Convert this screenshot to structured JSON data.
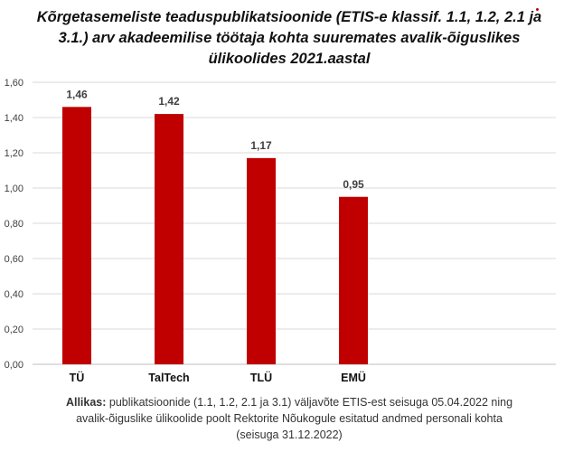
{
  "chart_data": {
    "type": "bar",
    "title": "Kõrgetasemeliste teaduspublikatsioonide (ETIS-e klassif. 1.1, 1.2, 2.1 ja 3.1.) arv akadeemilise töötaja kohta suuremates avalik-õiguslikes ülikoolides 2021.aastal",
    "categories": [
      "TÜ",
      "TalTech",
      "TLÜ",
      "EMÜ"
    ],
    "values": [
      1.46,
      1.42,
      1.17,
      0.95
    ],
    "data_labels": [
      "1,46",
      "1,42",
      "1,17",
      "0,95"
    ],
    "y_ticks": [
      "0,00",
      "0,20",
      "0,40",
      "0,60",
      "0,80",
      "1,00",
      "1,20",
      "1,40",
      "1,60"
    ],
    "ylim": [
      0,
      1.6
    ],
    "xlabel": "",
    "ylabel": "",
    "grid": true,
    "bar_color": "#c00000"
  },
  "source": {
    "label": "Allikas:",
    "text": "publikatsioonide (1.1, 1.2, 2.1 ja 3.1) väljavõte ETIS-est seisuga 05.04.2022 ning avalik-õiguslike ülikoolide poolt Rektorite Nõukogule esitatud andmed personali kohta  (seisuga 31.12.2022)"
  }
}
